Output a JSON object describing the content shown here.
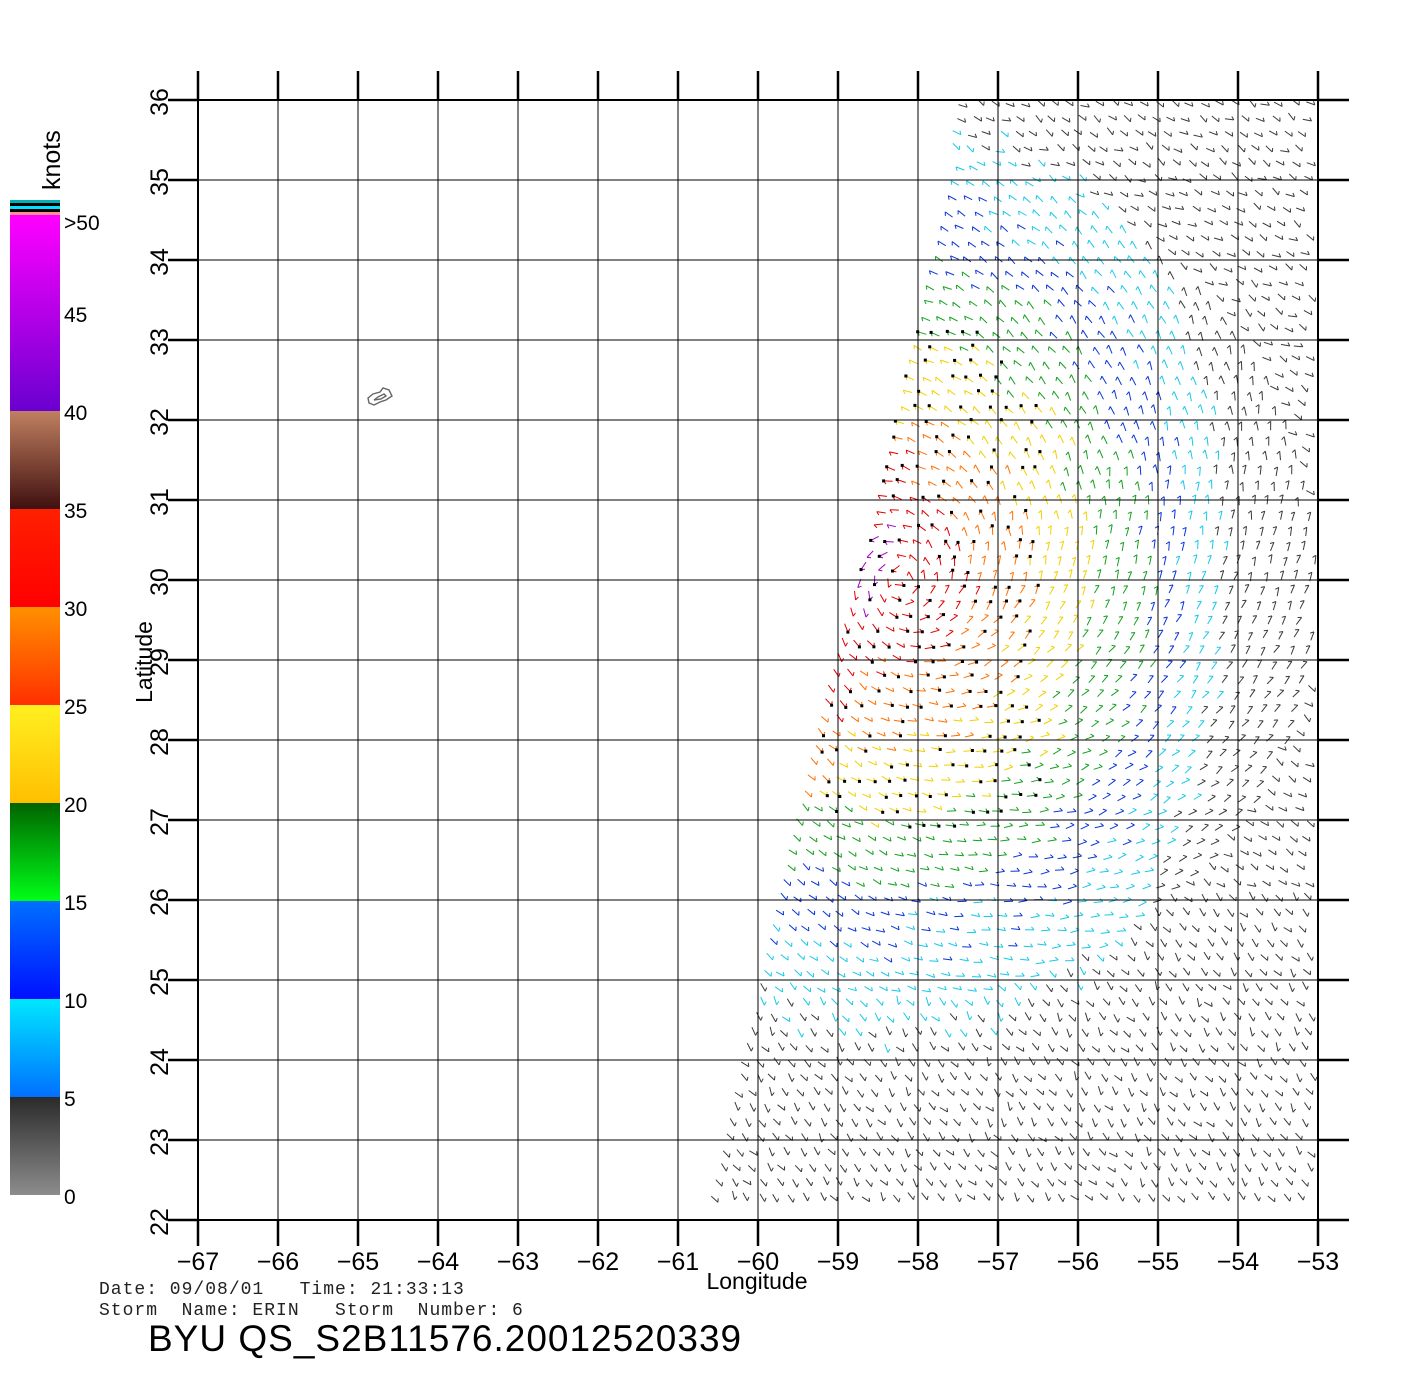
{
  "map": {
    "lon_ticks": [
      "−67",
      "−66",
      "−65",
      "−64",
      "−63",
      "−62",
      "−61",
      "−60",
      "−59",
      "−58",
      "−57",
      "−56",
      "−55",
      "−54",
      "−53"
    ],
    "lat_ticks": [
      "22",
      "23",
      "24",
      "25",
      "26",
      "27",
      "28",
      "29",
      "30",
      "31",
      "32",
      "33",
      "34",
      "35",
      "36"
    ],
    "xlabel": "Longitude",
    "ylabel": "Latitude",
    "lon_range": [
      -67,
      -53
    ],
    "lat_range": [
      22,
      36
    ],
    "grid": true,
    "landmass": "Bermuda outline near 64.7W 32.3N",
    "swath_corners_lonlat": [
      [
        -57.4,
        36
      ],
      [
        -53,
        36
      ],
      [
        -53,
        22
      ],
      [
        -60.6,
        22
      ]
    ]
  },
  "colorbar": {
    "unit": "knots",
    "tick_labels": [
      ">50",
      "45",
      "40",
      "35",
      "30",
      "25",
      "20",
      "15",
      "10",
      "5",
      "0"
    ],
    "bands": [
      {
        "from": 0,
        "to": 5,
        "top": "#2a2a2a",
        "bottom": "#8c8c8c"
      },
      {
        "from": 5,
        "to": 10,
        "top": "#00e8ff",
        "bottom": "#0070ff"
      },
      {
        "from": 10,
        "to": 15,
        "top": "#0070ff",
        "bottom": "#0010ff"
      },
      {
        "from": 15,
        "to": 20,
        "top": "#006400",
        "bottom": "#00ff18"
      },
      {
        "from": 20,
        "to": 25,
        "top": "#fff020",
        "bottom": "#ffbf00"
      },
      {
        "from": 25,
        "to": 30,
        "top": "#ff9000",
        "bottom": "#ff3000"
      },
      {
        "from": 30,
        "to": 35,
        "top": "#ff2000",
        "bottom": "#ff0000"
      },
      {
        "from": 35,
        "to": 40,
        "top": "#c08060",
        "bottom": "#401010"
      },
      {
        "from": 40,
        "to": 50,
        "top": "#ff00ff",
        "bottom": "#6a00d0"
      }
    ],
    "header_stripes": [
      "#00b0b8",
      "#000000",
      "#00e0ff",
      "#000000",
      "#ff9090"
    ]
  },
  "wind_field": {
    "description_colors": {
      "calm": "#3a3a3a",
      "light": "#18c8e8",
      "moderate": "#0a35d8",
      "fresh": "#14a020",
      "strong": "#f0d000",
      "gale": "#ff7000",
      "storm": "#e00000",
      "severe": "#a000c0"
    },
    "storm_center_lonlat": [
      -58.2,
      30.0
    ]
  },
  "footer": {
    "date_line": "Date: 09/08/01   Time: 21:33:13",
    "storm_line": "Storm  Name: ERIN   Storm  Number: 6",
    "title": "BYU  QS_S2B11576.20012520339"
  }
}
